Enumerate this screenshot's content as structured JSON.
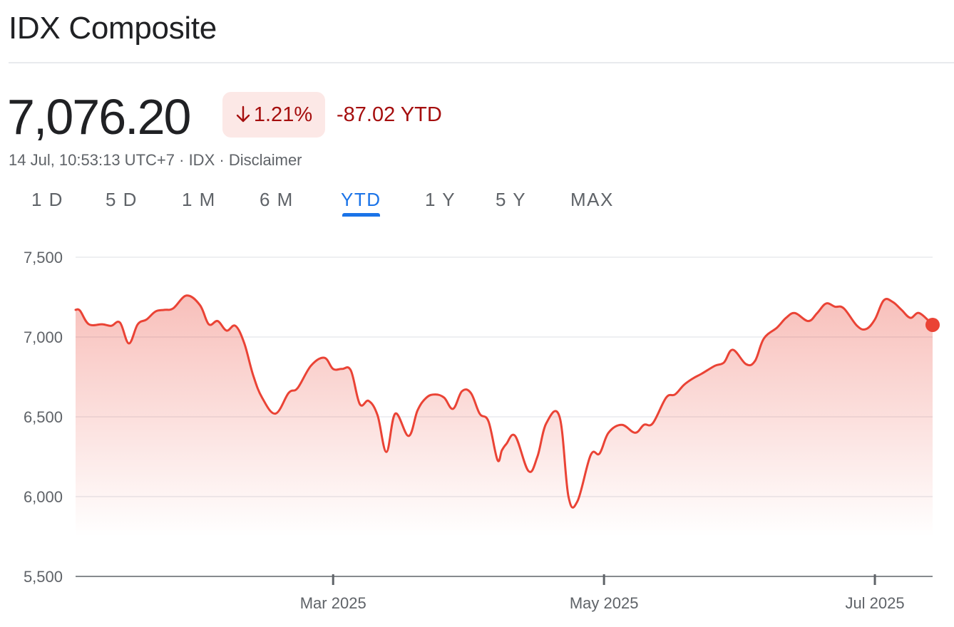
{
  "header": {
    "title": "IDX Composite"
  },
  "quote": {
    "price": "7,076.20",
    "change_percent": "1.21%",
    "change_direction": "down",
    "ytd_change": "-87.02 YTD",
    "timestamp": "14 Jul, 10:53:13 UTC+7",
    "separator": "·",
    "exchange": "IDX",
    "disclaimer": "Disclaimer"
  },
  "tabs": [
    {
      "label": "1 D",
      "active": false
    },
    {
      "label": "5 D",
      "active": false
    },
    {
      "label": "1 M",
      "active": false
    },
    {
      "label": "6 M",
      "active": false
    },
    {
      "label": "YTD",
      "active": true
    },
    {
      "label": "1 Y",
      "active": false
    },
    {
      "label": "5 Y",
      "active": false
    },
    {
      "label": "MAX",
      "active": false
    }
  ],
  "colors": {
    "line": "#ea4335",
    "down_text": "#a50e0e",
    "down_bg": "#fce8e6",
    "active_tab": "#1a73e8",
    "grid": "#e8eaed"
  },
  "chart_data": {
    "type": "area",
    "title": "",
    "xlabel": "",
    "ylabel": "",
    "ylim": [
      5500,
      7500
    ],
    "y_ticks": [
      {
        "value": 7500,
        "label": "7,500"
      },
      {
        "value": 7000,
        "label": "7,000"
      },
      {
        "value": 6500,
        "label": "6,500"
      },
      {
        "value": 6000,
        "label": "6,000"
      },
      {
        "value": 5500,
        "label": "5,500"
      }
    ],
    "x_domain": [
      "2025-01-02",
      "2025-07-14"
    ],
    "x_ticks": [
      {
        "date": "2025-03-01",
        "label": "Mar 2025"
      },
      {
        "date": "2025-05-01",
        "label": "May 2025"
      },
      {
        "date": "2025-07-01",
        "label": "Jul 2025"
      }
    ],
    "grid": true,
    "series": [
      {
        "x": [
          "2025-01-02",
          "2025-01-03",
          "2025-01-05",
          "2025-01-08",
          "2025-01-10",
          "2025-01-12",
          "2025-01-14",
          "2025-01-16",
          "2025-01-18",
          "2025-01-20",
          "2025-01-22",
          "2025-01-24",
          "2025-01-27",
          "2025-01-30",
          "2025-02-01",
          "2025-02-03",
          "2025-02-05",
          "2025-02-07",
          "2025-02-09",
          "2025-02-11",
          "2025-02-13",
          "2025-02-16",
          "2025-02-19",
          "2025-02-21",
          "2025-02-24",
          "2025-02-27",
          "2025-03-01",
          "2025-03-03",
          "2025-03-05",
          "2025-03-07",
          "2025-03-09",
          "2025-03-11",
          "2025-03-13",
          "2025-03-15",
          "2025-03-18",
          "2025-03-20",
          "2025-03-22",
          "2025-03-24",
          "2025-03-26",
          "2025-03-28",
          "2025-03-30",
          "2025-04-01",
          "2025-04-03",
          "2025-04-05",
          "2025-04-07",
          "2025-04-08",
          "2025-04-09",
          "2025-04-11",
          "2025-04-14",
          "2025-04-16",
          "2025-04-18",
          "2025-04-21",
          "2025-04-23",
          "2025-04-25",
          "2025-04-28",
          "2025-04-30",
          "2025-05-02",
          "2025-05-05",
          "2025-05-08",
          "2025-05-10",
          "2025-05-12",
          "2025-05-15",
          "2025-05-17",
          "2025-05-19",
          "2025-05-21",
          "2025-05-23",
          "2025-05-26",
          "2025-05-28",
          "2025-05-30",
          "2025-06-02",
          "2025-06-04",
          "2025-06-06",
          "2025-06-09",
          "2025-06-11",
          "2025-06-13",
          "2025-06-16",
          "2025-06-18",
          "2025-06-20",
          "2025-06-22",
          "2025-06-24",
          "2025-06-27",
          "2025-06-29",
          "2025-07-01",
          "2025-07-03",
          "2025-07-05",
          "2025-07-07",
          "2025-07-09",
          "2025-07-11",
          "2025-07-14"
        ],
        "values": [
          7170,
          7165,
          7080,
          7080,
          7070,
          7090,
          6960,
          7080,
          7110,
          7160,
          7170,
          7180,
          7260,
          7200,
          7080,
          7100,
          7040,
          7070,
          6960,
          6760,
          6620,
          6520,
          6650,
          6680,
          6820,
          6870,
          6800,
          6800,
          6790,
          6580,
          6600,
          6510,
          6280,
          6520,
          6380,
          6540,
          6620,
          6640,
          6620,
          6550,
          6660,
          6650,
          6520,
          6470,
          6230,
          6290,
          6330,
          6380,
          6160,
          6250,
          6460,
          6500,
          6000,
          5970,
          6260,
          6270,
          6400,
          6450,
          6400,
          6450,
          6460,
          6620,
          6640,
          6700,
          6740,
          6770,
          6820,
          6840,
          6920,
          6830,
          6850,
          6990,
          7060,
          7120,
          7150,
          7100,
          7150,
          7210,
          7190,
          7180,
          7070,
          7050,
          7110,
          7230,
          7220,
          7170,
          7120,
          7150,
          7076
        ]
      }
    ]
  }
}
